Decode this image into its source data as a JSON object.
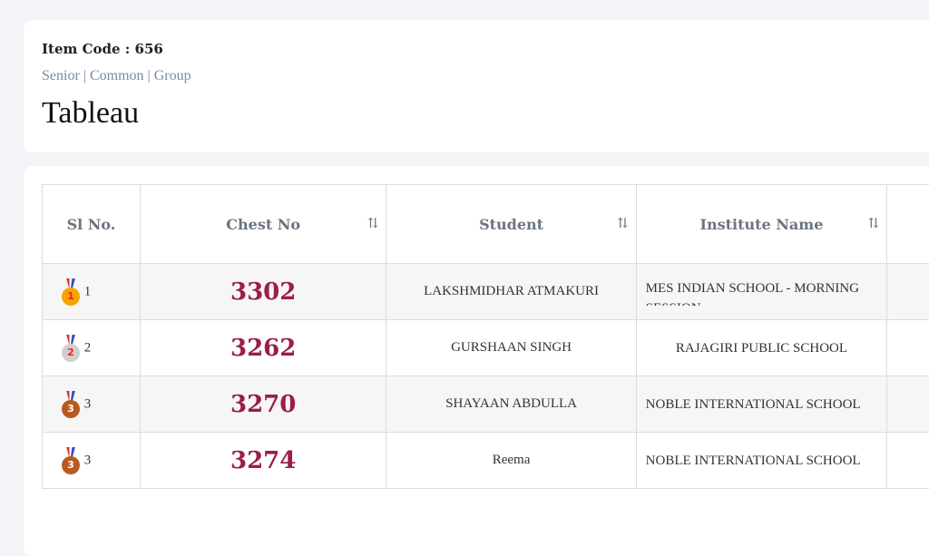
{
  "header": {
    "item_code": "Item Code : 656",
    "categories": "Senior | Common | Group",
    "title": "Tableau"
  },
  "table": {
    "columns": [
      "Sl No.",
      "Chest No",
      "Student",
      "Institute Name"
    ],
    "rows": [
      {
        "medal": "gold-medal",
        "medal_num": "1",
        "sl": "1",
        "chest": "3302",
        "student": "LAKSHMIDHAR ATMAKURI",
        "institute": "MES INDIAN SCHOOL - MORNING SESSION"
      },
      {
        "medal": "silver-medal",
        "medal_num": "2",
        "sl": "2",
        "chest": "3262",
        "student": "GURSHAAN SINGH",
        "institute": "RAJAGIRI PUBLIC SCHOOL"
      },
      {
        "medal": "bronze-medal",
        "medal_num": "3",
        "sl": "3",
        "chest": "3270",
        "student": "SHAYAAN ABDULLA",
        "institute": "NOBLE INTERNATIONAL SCHOOL"
      },
      {
        "medal": "bronze-medal",
        "medal_num": "3",
        "sl": "3",
        "chest": "3274",
        "student": "Reema",
        "institute": "NOBLE INTERNATIONAL SCHOOL"
      }
    ]
  },
  "colors": {
    "chest": "#9b1f45",
    "gold": "#f5a300",
    "silver": "#d0d0d0",
    "bronze": "#b85a1e"
  }
}
